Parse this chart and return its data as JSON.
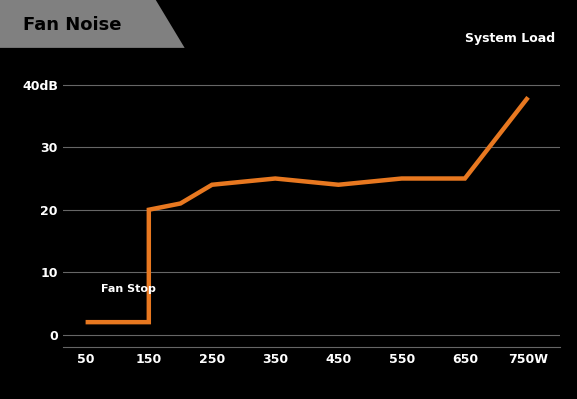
{
  "title": "Fan Noise",
  "system_load_label": "System Load",
  "background_color": "#000000",
  "title_bg_color": "#808080",
  "header_bar_color": "#1a1a1a",
  "line_color": "#e87820",
  "line_width": 3.2,
  "grid_color": "#666666",
  "text_color": "#ffffff",
  "title_text_color": "#000000",
  "fan_stop_label": "Fan Stop",
  "x_data": [
    50,
    150,
    150,
    200,
    250,
    350,
    450,
    550,
    600,
    650,
    750
  ],
  "y_data": [
    2,
    2,
    20,
    21,
    24,
    25,
    24,
    25,
    25,
    25,
    38
  ],
  "xticks": [
    50,
    150,
    250,
    350,
    450,
    550,
    650,
    750
  ],
  "xtick_labels": [
    "50",
    "150",
    "250",
    "350",
    "450",
    "550",
    "650",
    "750W"
  ],
  "yticks": [
    0,
    10,
    20,
    30,
    40
  ],
  "ytick_labels": [
    "0",
    "10",
    "20",
    "30",
    "40dB"
  ],
  "ylim": [
    -2,
    44
  ],
  "xlim": [
    15,
    800
  ],
  "title_fontsize": 13,
  "tick_fontsize": 9,
  "system_load_fontsize": 9,
  "fan_stop_fontsize": 8
}
